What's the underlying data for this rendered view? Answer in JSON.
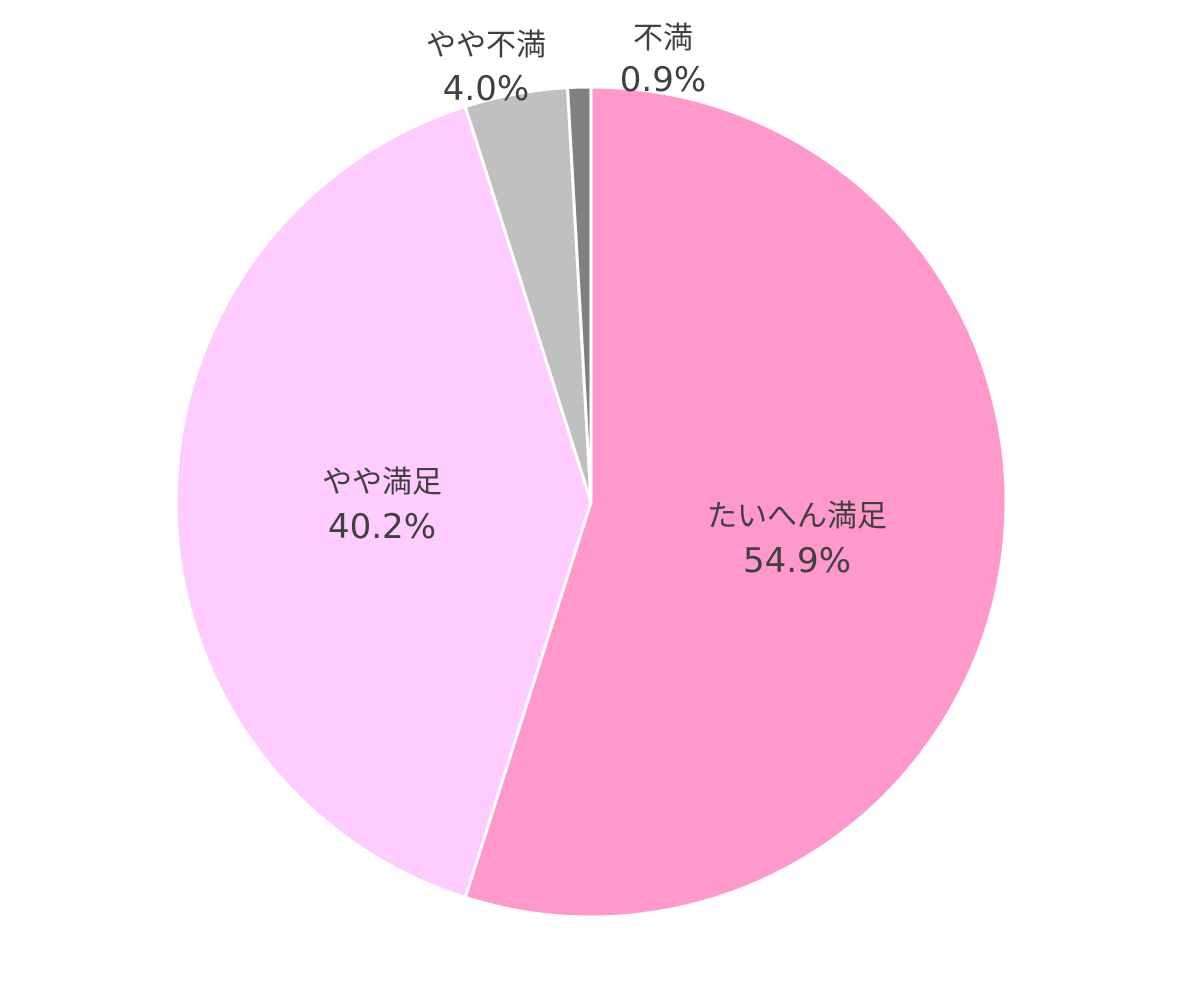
{
  "chart_data": {
    "type": "pie",
    "title": "",
    "slices": [
      {
        "label": "たいへん満足",
        "value": 54.9,
        "value_label": "54.9%",
        "color": "#FF99CC"
      },
      {
        "label": "やや満足",
        "value": 40.2,
        "value_label": "40.2%",
        "color": "#FFCCFF"
      },
      {
        "label": "やや不満",
        "value": 4.0,
        "value_label": "4.0%",
        "color": "#C0C0C0"
      },
      {
        "label": "不満",
        "value": 0.9,
        "value_label": "0.9%",
        "color": "#808080"
      }
    ],
    "start": "12 o'clock",
    "direction": "clockwise",
    "legend": "none",
    "labels": "category and percent on slices"
  }
}
